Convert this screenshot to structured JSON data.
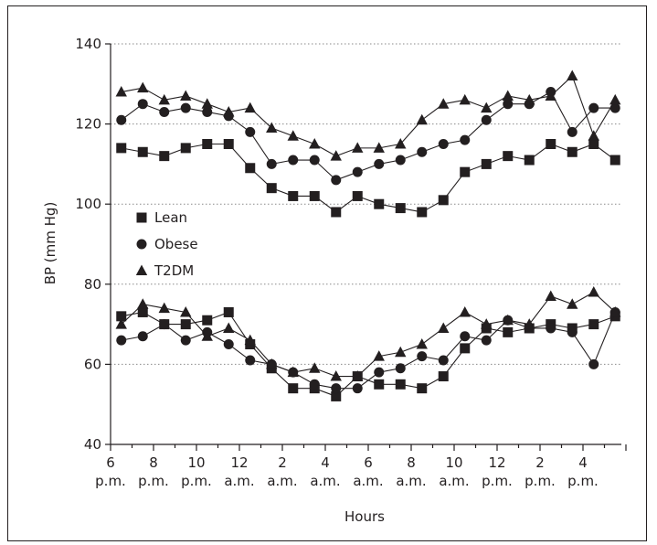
{
  "chart_data": {
    "type": "line",
    "xlabel": "Hours",
    "ylabel": "BP (mm Hg)",
    "ylim": [
      40,
      140
    ],
    "yticks": [
      "40",
      "60",
      "80",
      "100",
      "120",
      "140"
    ],
    "grid": "horizontal dotted at 60, 80, 100, 120, 140",
    "legend_position": "left-middle",
    "x_tick_labels": [
      {
        "top": "6",
        "bottom": "p.m."
      },
      {
        "top": "8",
        "bottom": "p.m."
      },
      {
        "top": "10",
        "bottom": "p.m."
      },
      {
        "top": "12",
        "bottom": "a.m."
      },
      {
        "top": "2",
        "bottom": "a.m."
      },
      {
        "top": "4",
        "bottom": "a.m."
      },
      {
        "top": "6",
        "bottom": "a.m."
      },
      {
        "top": "8",
        "bottom": "a.m."
      },
      {
        "top": "10",
        "bottom": "a.m."
      },
      {
        "top": "12",
        "bottom": "p.m."
      },
      {
        "top": "2",
        "bottom": "p.m."
      },
      {
        "top": "4",
        "bottom": "p.m."
      }
    ],
    "x": [
      6.5,
      7.5,
      8.5,
      9.5,
      10.5,
      11.5,
      12.5,
      13.5,
      14.5,
      15.5,
      16.5,
      17.5,
      18.5,
      19.5,
      20.5,
      21.5,
      22.5,
      23.5,
      24.5,
      25.5,
      26.5,
      27.5,
      28.5,
      29.5
    ],
    "series": [
      {
        "name": "Lean",
        "marker": "square",
        "group": "systolic",
        "values": [
          114,
          113,
          112,
          114,
          115,
          115,
          109,
          104,
          102,
          102,
          98,
          102,
          100,
          99,
          98,
          101,
          108,
          110,
          112,
          111,
          115,
          113,
          115,
          111
        ]
      },
      {
        "name": "Obese",
        "marker": "circle",
        "group": "systolic",
        "values": [
          121,
          125,
          123,
          124,
          123,
          122,
          118,
          110,
          111,
          111,
          106,
          108,
          110,
          111,
          113,
          115,
          116,
          121,
          125,
          125,
          128,
          118,
          124,
          124
        ]
      },
      {
        "name": "T2DM",
        "marker": "triangle",
        "group": "systolic",
        "values": [
          128,
          129,
          126,
          127,
          125,
          123,
          124,
          119,
          117,
          115,
          112,
          114,
          114,
          115,
          121,
          125,
          126,
          124,
          127,
          126,
          127,
          132,
          117,
          126
        ]
      },
      {
        "name": "Lean",
        "marker": "square",
        "group": "diastolic",
        "values": [
          72,
          73,
          70,
          70,
          71,
          73,
          65,
          59,
          54,
          54,
          52,
          57,
          55,
          55,
          54,
          57,
          64,
          69,
          68,
          69,
          70,
          69,
          70,
          72
        ]
      },
      {
        "name": "Obese",
        "marker": "circle",
        "group": "diastolic",
        "values": [
          66,
          67,
          70,
          66,
          68,
          65,
          61,
          60,
          58,
          55,
          54,
          54,
          58,
          59,
          62,
          61,
          67,
          66,
          71,
          69,
          69,
          68,
          60,
          73
        ]
      },
      {
        "name": "T2DM",
        "marker": "triangle",
        "group": "diastolic",
        "values": [
          70,
          75,
          74,
          73,
          67,
          69,
          66,
          60,
          58,
          59,
          57,
          57,
          62,
          63,
          65,
          69,
          73,
          70,
          71,
          70,
          77,
          75,
          78,
          73
        ]
      }
    ],
    "legend": [
      {
        "label": "Lean",
        "marker": "square"
      },
      {
        "label": "Obese",
        "marker": "circle"
      },
      {
        "label": "T2DM",
        "marker": "triangle"
      }
    ],
    "line_color": "#231f20"
  }
}
